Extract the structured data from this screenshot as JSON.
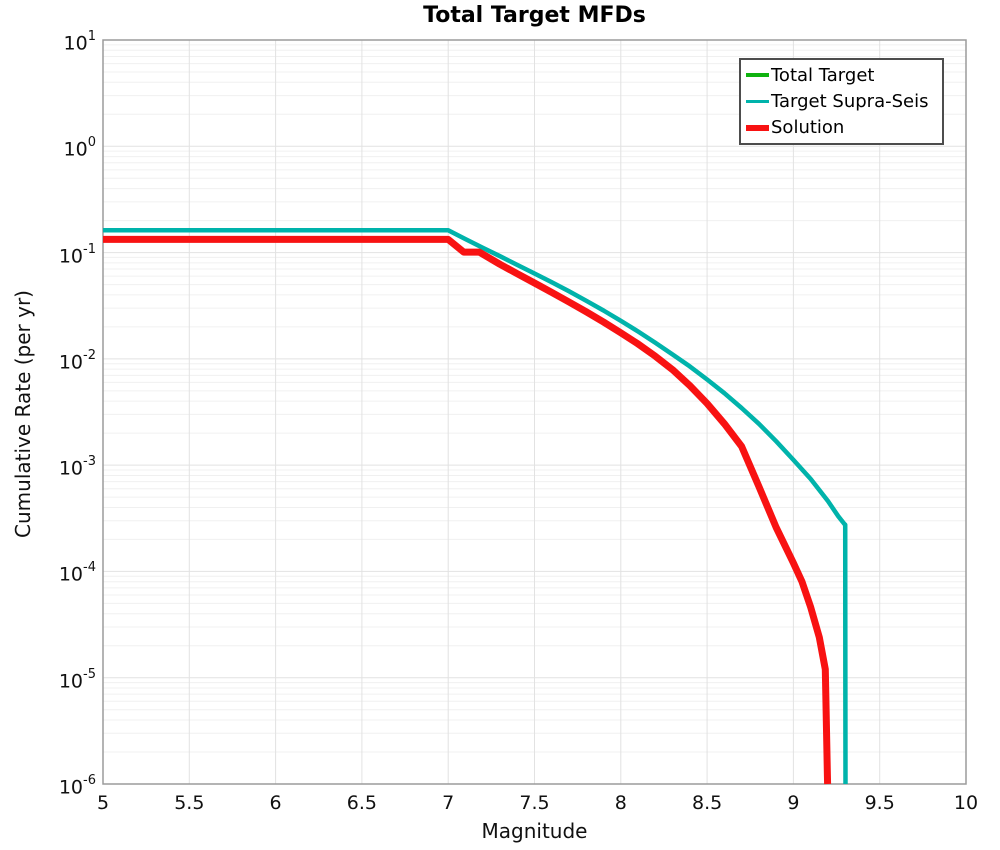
{
  "figure": {
    "background": "#ffffff",
    "frame_color": "#9b9b9b",
    "grid_major_color": "#e2e2e2",
    "grid_minor_color": "#f0f0f0"
  },
  "chart": {
    "title": "Total Target MFDs",
    "xlabel": "Magnitude",
    "ylabel": "Cumulative Rate (per yr)"
  },
  "legend": {
    "entries": [
      {
        "label": "Total Target",
        "color": "#0fb20f",
        "swatch_height": 4
      },
      {
        "label": "Target Supra-Seis",
        "color": "#00b3ab",
        "swatch_height": 3.5
      },
      {
        "label": "Solution",
        "color": "#f81212",
        "swatch_height": 6
      }
    ]
  },
  "chart_data": {
    "type": "line",
    "title": "Total Target MFDs",
    "xlabel": "Magnitude",
    "ylabel": "Cumulative Rate (per yr)",
    "grid": true,
    "legend_position": "top-right",
    "x_axis": {
      "min": 5,
      "max": 10,
      "tick_labels": [
        "5",
        "5.5",
        "6",
        "6.5",
        "7",
        "7.5",
        "8",
        "8.5",
        "9",
        "9.5",
        "10"
      ]
    },
    "y_axis": {
      "scale": "log",
      "min": 1e-06,
      "max": 10,
      "tick_exponents": [
        1,
        0,
        -1,
        -2,
        -3,
        -4,
        -5,
        -6
      ]
    },
    "series": [
      {
        "name": "Total Target",
        "color": "#0fb20f",
        "width": 4,
        "points": [
          [
            5.0,
            0.162
          ],
          [
            7.0,
            0.162
          ],
          [
            7.1,
            0.134
          ],
          [
            7.2,
            0.111
          ],
          [
            7.3,
            0.0925
          ],
          [
            7.4,
            0.0765
          ],
          [
            7.5,
            0.0635
          ],
          [
            7.6,
            0.0525
          ],
          [
            7.7,
            0.0432
          ],
          [
            7.8,
            0.0352
          ],
          [
            7.9,
            0.0285
          ],
          [
            8.0,
            0.0228
          ],
          [
            8.1,
            0.0181
          ],
          [
            8.2,
            0.0142
          ],
          [
            8.3,
            0.011
          ],
          [
            8.4,
            0.0085
          ],
          [
            8.5,
            0.0064
          ],
          [
            8.6,
            0.00475
          ],
          [
            8.7,
            0.00345
          ],
          [
            8.8,
            0.00245
          ],
          [
            8.9,
            0.00168
          ],
          [
            9.0,
            0.00112
          ],
          [
            9.1,
            0.00074
          ],
          [
            9.2,
            0.00046
          ],
          [
            9.26,
            0.00033
          ],
          [
            9.295,
            0.00028
          ],
          [
            9.3,
            0.000275
          ],
          [
            9.302,
            1e-06
          ]
        ]
      },
      {
        "name": "Target Supra-Seis",
        "color": "#00b3ab",
        "width": 4.5,
        "points": [
          [
            5.0,
            0.162
          ],
          [
            7.0,
            0.162
          ],
          [
            7.1,
            0.134
          ],
          [
            7.2,
            0.111
          ],
          [
            7.3,
            0.0925
          ],
          [
            7.4,
            0.0765
          ],
          [
            7.5,
            0.0635
          ],
          [
            7.6,
            0.0525
          ],
          [
            7.7,
            0.0432
          ],
          [
            7.8,
            0.0352
          ],
          [
            7.9,
            0.0285
          ],
          [
            8.0,
            0.0228
          ],
          [
            8.1,
            0.0181
          ],
          [
            8.2,
            0.0142
          ],
          [
            8.3,
            0.011
          ],
          [
            8.4,
            0.0085
          ],
          [
            8.5,
            0.0064
          ],
          [
            8.6,
            0.00475
          ],
          [
            8.7,
            0.00345
          ],
          [
            8.8,
            0.00245
          ],
          [
            8.9,
            0.00168
          ],
          [
            9.0,
            0.00112
          ],
          [
            9.1,
            0.00074
          ],
          [
            9.2,
            0.00046
          ],
          [
            9.26,
            0.00033
          ],
          [
            9.295,
            0.00028
          ],
          [
            9.3,
            0.000275
          ],
          [
            9.302,
            1e-06
          ]
        ]
      },
      {
        "name": "Solution",
        "color": "#f81212",
        "width": 7,
        "points": [
          [
            5.0,
            0.133
          ],
          [
            7.0,
            0.133
          ],
          [
            7.09,
            0.101
          ],
          [
            7.18,
            0.101
          ],
          [
            7.3,
            0.0775
          ],
          [
            7.4,
            0.0633
          ],
          [
            7.5,
            0.0517
          ],
          [
            7.6,
            0.0422
          ],
          [
            7.7,
            0.0343
          ],
          [
            7.8,
            0.0277
          ],
          [
            7.9,
            0.0222
          ],
          [
            8.0,
            0.0176
          ],
          [
            8.1,
            0.0138
          ],
          [
            8.2,
            0.0106
          ],
          [
            8.3,
            0.0079
          ],
          [
            8.4,
            0.0056
          ],
          [
            8.5,
            0.0038
          ],
          [
            8.6,
            0.00245
          ],
          [
            8.7,
            0.0015
          ],
          [
            8.8,
            0.00063
          ],
          [
            8.9,
            0.00026
          ],
          [
            9.0,
            0.00012
          ],
          [
            9.05,
            8e-05
          ],
          [
            9.1,
            4.6e-05
          ],
          [
            9.15,
            2.4e-05
          ],
          [
            9.185,
            1.2e-05
          ],
          [
            9.197,
            1.2e-06
          ],
          [
            9.198,
            1e-06
          ]
        ]
      }
    ]
  }
}
